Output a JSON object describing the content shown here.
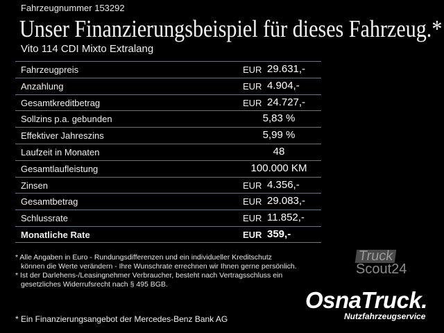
{
  "header": {
    "vehicle_number": "Fahrzeugnummer 153292",
    "title": "Unser Finanzierungsbeispiel für dieses Fahrzeug.*",
    "model": "Vito 114 CDI Mixto Extralang"
  },
  "table": {
    "rows": [
      {
        "label": "Fahrzeugpreis",
        "currency": "EUR",
        "value": "29.631,-"
      },
      {
        "label": "Anzahlung",
        "currency": "EUR",
        "value": "4.904,-"
      },
      {
        "label": "Gesamtkreditbetrag",
        "currency": "EUR",
        "value": "24.727,-"
      },
      {
        "label": "Sollzins p.a. gebunden",
        "currency": "",
        "value": "5,83 %"
      },
      {
        "label": "Effektiver Jahreszins",
        "currency": "",
        "value": "5,99 %"
      },
      {
        "label": "Laufzeit in Monaten",
        "currency": "",
        "value": "48"
      },
      {
        "label": "Gesamtlaufleistung",
        "currency": "",
        "value": "100.000 KM"
      },
      {
        "label": "Zinsen",
        "currency": "EUR",
        "value": "4.356,-"
      },
      {
        "label": "Gesamtbetrag",
        "currency": "EUR",
        "value": "29.083,-"
      },
      {
        "label": "Schlussrate",
        "currency": "EUR",
        "value": "11.852,-"
      },
      {
        "label": "Monatliche Rate",
        "currency": "EUR",
        "value": "359,-"
      }
    ]
  },
  "footnotes": {
    "line1": "* Alle Angaben in Euro - Rundungsdifferenzen und ein individueller Kreditschutz",
    "line2": "können die Werte verändern - Ihre Wunschrate errechnen wir Ihnen gerne persönlich.",
    "line3": "* Ist der Darlehens-/Leasingnehmer Verbraucher, besteht nach Vertragsschluss ein",
    "line4": "gesetzliches Widerrufsrecht nach § 495 BGB.",
    "bank": "* Ein Finanzierungsangebot der Mercedes-Benz Bank AG"
  },
  "logos": {
    "truckscout_top": "Truck",
    "truckscout_bottom": "Scout24",
    "osnatruck": "OsnaTruck.",
    "osnatruck_sub": "Nutzfahrzeugservice"
  }
}
